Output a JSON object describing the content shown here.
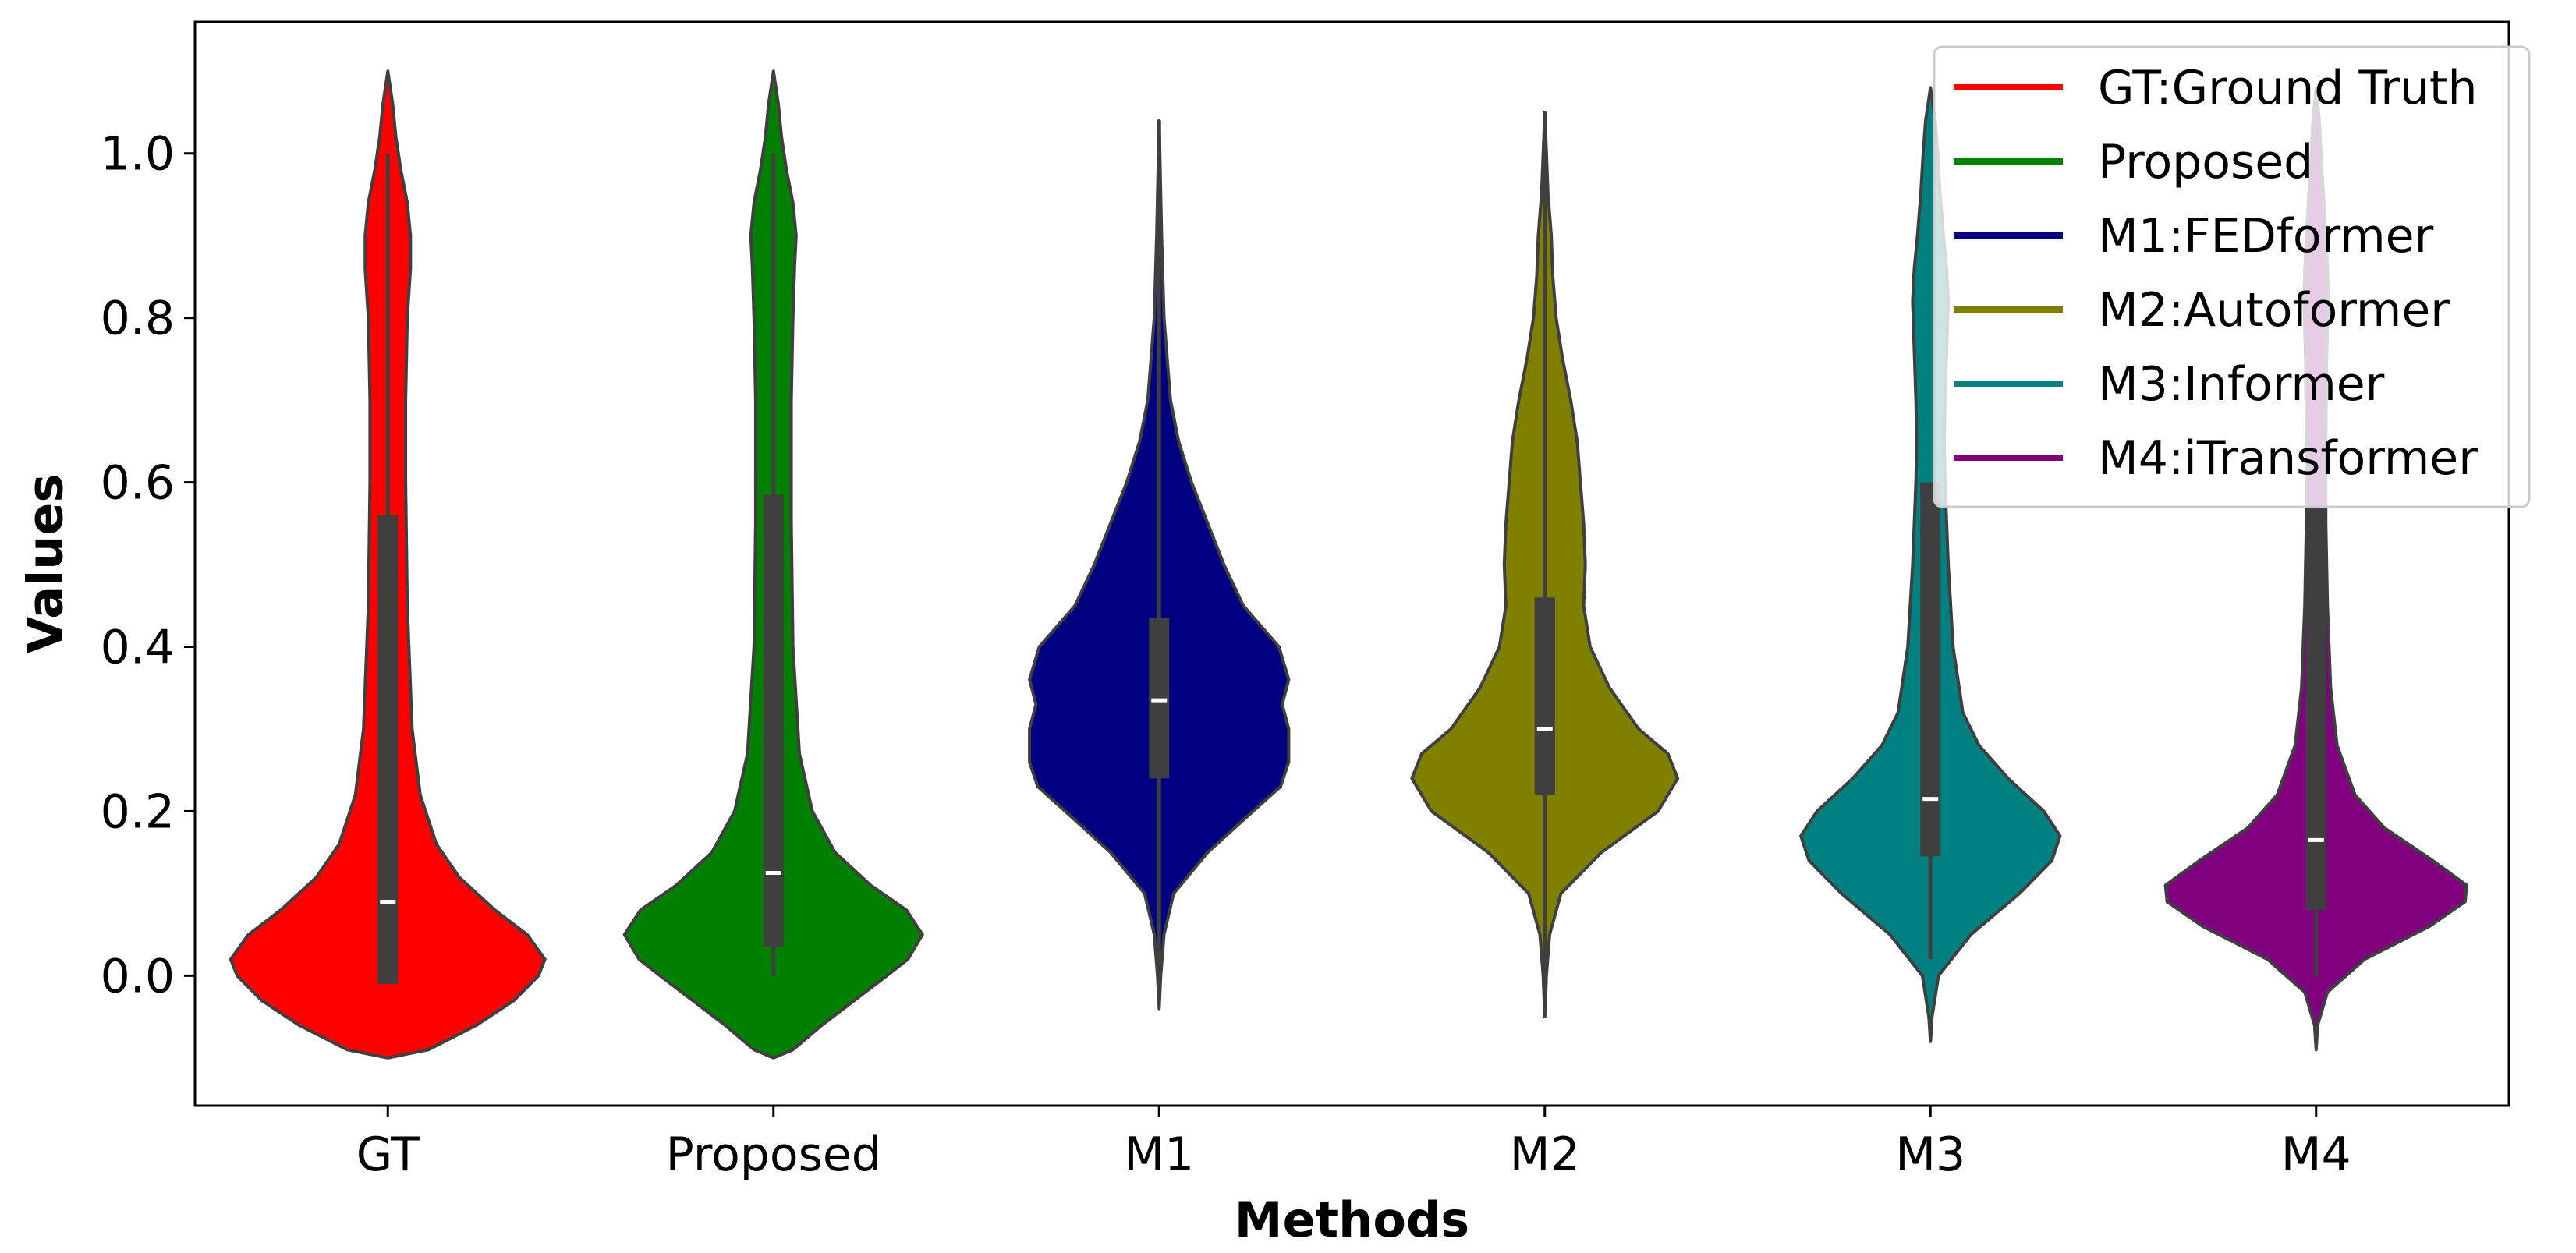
{
  "chart_data": {
    "type": "violin",
    "title": "",
    "xlabel": "Methods",
    "ylabel": "Values",
    "ylim": [
      -0.158,
      1.16
    ],
    "yticks": [
      0.0,
      0.2,
      0.4,
      0.6,
      0.8,
      1.0
    ],
    "ytick_labels": [
      "0.0",
      "0.2",
      "0.4",
      "0.6",
      "0.8",
      "1.0"
    ],
    "categories": [
      "GT",
      "Proposed",
      "M1",
      "M2",
      "M3",
      "M4"
    ],
    "legend_position": "top-right",
    "legend": [
      {
        "label": "GT:Ground Truth",
        "color": "#ff0000"
      },
      {
        "label": "Proposed",
        "color": "#008000"
      },
      {
        "label": "M1:FEDformer",
        "color": "#000080"
      },
      {
        "label": "M2:Autoformer",
        "color": "#808000"
      },
      {
        "label": "M3:Informer",
        "color": "#008080"
      },
      {
        "label": "M4:iTransformer",
        "color": "#800080"
      }
    ],
    "series": [
      {
        "category": "GT",
        "color": "#ff0000",
        "alpha": 1.0,
        "range": [
          -0.1,
          1.1
        ],
        "whisker": [
          -0.01,
          1.0
        ],
        "q1": -0.01,
        "median": 0.09,
        "q3": 0.56,
        "profile": [
          [
            -0.1,
            0.0
          ],
          [
            -0.09,
            0.25
          ],
          [
            -0.06,
            0.55
          ],
          [
            -0.03,
            0.78
          ],
          [
            0.0,
            0.93
          ],
          [
            0.02,
            0.97
          ],
          [
            0.05,
            0.86
          ],
          [
            0.08,
            0.66
          ],
          [
            0.12,
            0.44
          ],
          [
            0.16,
            0.3
          ],
          [
            0.22,
            0.2
          ],
          [
            0.3,
            0.15
          ],
          [
            0.45,
            0.12
          ],
          [
            0.6,
            0.11
          ],
          [
            0.7,
            0.11
          ],
          [
            0.8,
            0.12
          ],
          [
            0.86,
            0.14
          ],
          [
            0.9,
            0.14
          ],
          [
            0.94,
            0.12
          ],
          [
            0.98,
            0.08
          ],
          [
            1.02,
            0.05
          ],
          [
            1.06,
            0.03
          ],
          [
            1.1,
            0.0
          ]
        ]
      },
      {
        "category": "Proposed",
        "color": "#008000",
        "alpha": 1.0,
        "range": [
          -0.1,
          1.1
        ],
        "whisker": [
          0.0,
          1.0
        ],
        "q1": 0.035,
        "median": 0.125,
        "q3": 0.585,
        "profile": [
          [
            -0.1,
            0.0
          ],
          [
            -0.09,
            0.12
          ],
          [
            -0.06,
            0.3
          ],
          [
            -0.03,
            0.5
          ],
          [
            0.0,
            0.7
          ],
          [
            0.02,
            0.83
          ],
          [
            0.05,
            0.92
          ],
          [
            0.08,
            0.82
          ],
          [
            0.11,
            0.6
          ],
          [
            0.15,
            0.38
          ],
          [
            0.2,
            0.24
          ],
          [
            0.27,
            0.16
          ],
          [
            0.4,
            0.12
          ],
          [
            0.55,
            0.11
          ],
          [
            0.7,
            0.11
          ],
          [
            0.8,
            0.12
          ],
          [
            0.86,
            0.13
          ],
          [
            0.9,
            0.14
          ],
          [
            0.94,
            0.12
          ],
          [
            0.98,
            0.08
          ],
          [
            1.02,
            0.05
          ],
          [
            1.06,
            0.03
          ],
          [
            1.1,
            0.0
          ]
        ]
      },
      {
        "category": "M1",
        "color": "#000080",
        "alpha": 1.0,
        "range": [
          -0.04,
          1.04
        ],
        "whisker": [
          0.0,
          1.04
        ],
        "q1": 0.24,
        "median": 0.335,
        "q3": 0.435,
        "profile": [
          [
            -0.04,
            0.0
          ],
          [
            0.0,
            0.01
          ],
          [
            0.05,
            0.03
          ],
          [
            0.1,
            0.09
          ],
          [
            0.15,
            0.3
          ],
          [
            0.2,
            0.58
          ],
          [
            0.23,
            0.75
          ],
          [
            0.26,
            0.8
          ],
          [
            0.3,
            0.8
          ],
          [
            0.33,
            0.76
          ],
          [
            0.36,
            0.8
          ],
          [
            0.4,
            0.74
          ],
          [
            0.45,
            0.52
          ],
          [
            0.5,
            0.4
          ],
          [
            0.55,
            0.3
          ],
          [
            0.6,
            0.2
          ],
          [
            0.65,
            0.12
          ],
          [
            0.7,
            0.07
          ],
          [
            0.75,
            0.05
          ],
          [
            0.8,
            0.03
          ],
          [
            0.9,
            0.015
          ],
          [
            1.04,
            0.0
          ]
        ]
      },
      {
        "category": "M2",
        "color": "#808000",
        "alpha": 1.0,
        "range": [
          -0.05,
          1.05
        ],
        "whisker": [
          0.0,
          1.05
        ],
        "q1": 0.22,
        "median": 0.3,
        "q3": 0.46,
        "profile": [
          [
            -0.05,
            0.0
          ],
          [
            0.0,
            0.01
          ],
          [
            0.05,
            0.03
          ],
          [
            0.1,
            0.1
          ],
          [
            0.15,
            0.35
          ],
          [
            0.2,
            0.7
          ],
          [
            0.24,
            0.82
          ],
          [
            0.27,
            0.76
          ],
          [
            0.3,
            0.58
          ],
          [
            0.35,
            0.4
          ],
          [
            0.4,
            0.28
          ],
          [
            0.45,
            0.24
          ],
          [
            0.5,
            0.25
          ],
          [
            0.55,
            0.24
          ],
          [
            0.6,
            0.22
          ],
          [
            0.65,
            0.2
          ],
          [
            0.7,
            0.16
          ],
          [
            0.75,
            0.11
          ],
          [
            0.8,
            0.07
          ],
          [
            0.85,
            0.05
          ],
          [
            0.9,
            0.04
          ],
          [
            0.95,
            0.02
          ],
          [
            1.05,
            0.0
          ]
        ]
      },
      {
        "category": "M3",
        "color": "#008080",
        "alpha": 1.0,
        "range": [
          -0.08,
          1.08
        ],
        "whisker": [
          0.02,
          0.6
        ],
        "q1": 0.145,
        "median": 0.215,
        "q3": 0.6,
        "profile": [
          [
            -0.08,
            0.0
          ],
          [
            -0.05,
            0.01
          ],
          [
            0.0,
            0.05
          ],
          [
            0.05,
            0.25
          ],
          [
            0.1,
            0.55
          ],
          [
            0.14,
            0.75
          ],
          [
            0.17,
            0.8
          ],
          [
            0.2,
            0.7
          ],
          [
            0.24,
            0.48
          ],
          [
            0.28,
            0.3
          ],
          [
            0.32,
            0.2
          ],
          [
            0.4,
            0.14
          ],
          [
            0.5,
            0.11
          ],
          [
            0.6,
            0.09
          ],
          [
            0.65,
            0.085
          ],
          [
            0.7,
            0.09
          ],
          [
            0.76,
            0.1
          ],
          [
            0.82,
            0.11
          ],
          [
            0.86,
            0.1
          ],
          [
            0.9,
            0.08
          ],
          [
            0.95,
            0.06
          ],
          [
            1.0,
            0.045
          ],
          [
            1.04,
            0.03
          ],
          [
            1.08,
            0.0
          ]
        ]
      },
      {
        "category": "M4",
        "color": "#800080",
        "alpha": 1.0,
        "range": [
          -0.09,
          1.08
        ],
        "whisker": [
          0.0,
          0.57
        ],
        "q1": 0.08,
        "median": 0.165,
        "q3": 0.57,
        "profile": [
          [
            -0.09,
            0.0
          ],
          [
            -0.06,
            0.01
          ],
          [
            -0.02,
            0.07
          ],
          [
            0.02,
            0.3
          ],
          [
            0.06,
            0.7
          ],
          [
            0.09,
            0.92
          ],
          [
            0.11,
            0.93
          ],
          [
            0.14,
            0.72
          ],
          [
            0.18,
            0.42
          ],
          [
            0.22,
            0.24
          ],
          [
            0.28,
            0.13
          ],
          [
            0.35,
            0.09
          ],
          [
            0.45,
            0.07
          ],
          [
            0.55,
            0.06
          ],
          [
            0.65,
            0.06
          ],
          [
            0.75,
            0.065
          ],
          [
            0.82,
            0.075
          ],
          [
            0.86,
            0.07
          ],
          [
            0.9,
            0.06
          ],
          [
            0.95,
            0.045
          ],
          [
            1.0,
            0.03
          ],
          [
            1.04,
            0.02
          ],
          [
            1.08,
            0.0
          ]
        ]
      }
    ]
  }
}
